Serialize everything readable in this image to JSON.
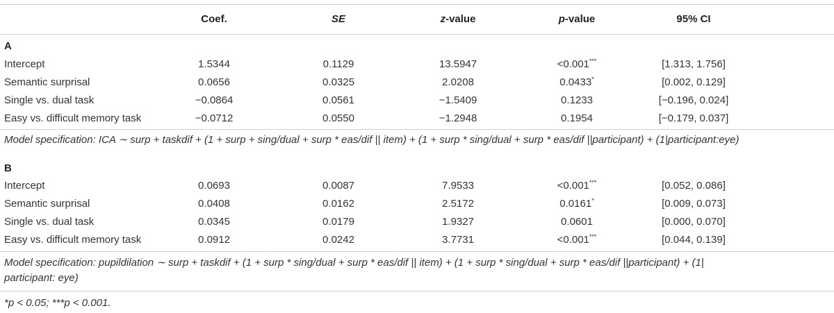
{
  "header": {
    "coef": "Coef.",
    "se": "SE",
    "z_italic": "z",
    "z_rest": "-value",
    "p_italic": "p",
    "p_rest": "-value",
    "ci": "95% CI"
  },
  "section_a": {
    "label": "A",
    "rows": [
      {
        "label": "Intercept",
        "coef": "1.5344",
        "se": "0.1129",
        "z": "13.5947",
        "p": "<0.001",
        "p_mark": "***",
        "ci": "[1.313, 1.756]"
      },
      {
        "label": "Semantic surprisal",
        "coef": "0.0656",
        "se": "0.0325",
        "z": "2.0208",
        "p": "0.0433",
        "p_mark": "*",
        "ci": "[0.002, 0.129]"
      },
      {
        "label": "Single vs. dual task",
        "coef": "−0.0864",
        "se": "0.0561",
        "z": "−1.5409",
        "p": "0.1233",
        "p_mark": "",
        "ci": "[−0.196, 0.024]"
      },
      {
        "label": "Easy vs. difficult memory task",
        "coef": "−0.0712",
        "se": "0.0550",
        "z": "−1.2948",
        "p": "0.1954",
        "p_mark": "",
        "ci": "[−0.179, 0.037]"
      }
    ],
    "spec": "Model specification: ICA ∼ surp + taskdif + (1 + surp + sing/dual + surp * eas/dif || item) + (1 + surp * sing/dual + surp * eas/dif ||participant) + (1|participant:eye)"
  },
  "section_b": {
    "label": "B",
    "rows": [
      {
        "label": "Intercept",
        "coef": "0.0693",
        "se": "0.0087",
        "z": "7.9533",
        "p": "<0.001",
        "p_mark": "***",
        "ci": "[0.052, 0.086]"
      },
      {
        "label": "Semantic surprisal",
        "coef": "0.0408",
        "se": "0.0162",
        "z": "2.5172",
        "p": "0.0161",
        "p_mark": "*",
        "ci": "[0.009, 0.073]"
      },
      {
        "label": "Single vs. dual task",
        "coef": "0.0345",
        "se": "0.0179",
        "z": "1.9327",
        "p": "0.0601",
        "p_mark": "",
        "ci": "[0.000, 0.070]"
      },
      {
        "label": "Easy vs. difficult memory task",
        "coef": "0.0912",
        "se": "0.0242",
        "z": "3.7731",
        "p": "<0.001",
        "p_mark": "***",
        "ci": "[0.044, 0.139]"
      }
    ],
    "spec_line1": "Model specification: pupildilation ∼ surp + taskdif + (1 + surp * sing/dual + surp * eas/dif || item) + (1 + surp * sing/dual + surp * eas/dif ||participant) + (1|",
    "spec_line2": "participant: eye)"
  },
  "footnote": "*p < 0.05; ***p < 0.001."
}
